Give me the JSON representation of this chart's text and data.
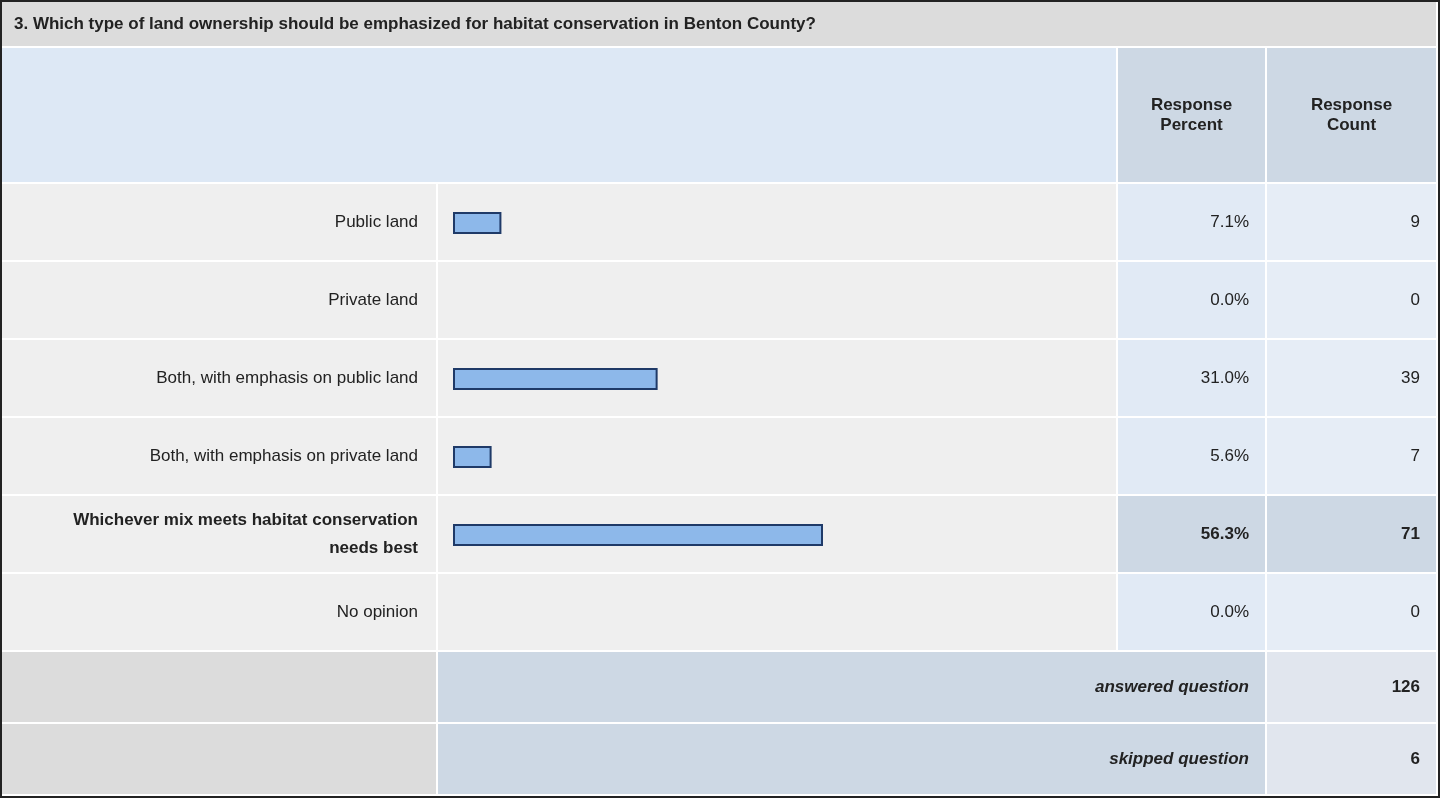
{
  "chart_data": {
    "type": "bar",
    "orientation": "horizontal",
    "title": "3. Which type of land ownership should be emphasized for habitat conservation in Benton County?",
    "categories": [
      "Public land",
      "Private land",
      "Both, with emphasis on public land",
      "Both, with emphasis on private land",
      "Whichever mix meets habitat conservation needs best",
      "No opinion"
    ],
    "values": [
      7.1,
      0.0,
      31.0,
      5.6,
      56.3,
      0.0
    ],
    "value_labels": [
      "7.1%",
      "0.0%",
      "31.0%",
      "5.6%",
      "56.3%",
      "0.0%"
    ],
    "color": "#8db8ea",
    "annotations": [
      "Response Percent",
      "Response Count",
      "9",
      "0",
      "39",
      "7",
      "71",
      "0",
      "answered question",
      "126",
      "skipped question",
      "6"
    ]
  }
}
